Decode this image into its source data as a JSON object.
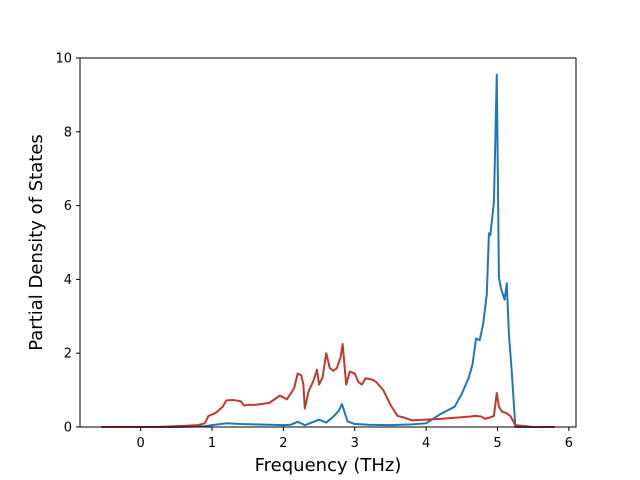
{
  "chart_data": {
    "type": "line",
    "xlabel": "Frequency (THz)",
    "ylabel": "Partial Density of States",
    "xlim": [
      -0.85,
      6.1
    ],
    "ylim": [
      0,
      10
    ],
    "xticks": [
      0,
      1,
      2,
      3,
      4,
      5,
      6
    ],
    "yticks": [
      0,
      2,
      4,
      6,
      8,
      10
    ],
    "grid": false,
    "series": [
      {
        "color": "#1f77b4",
        "x": [
          -0.55,
          0.5,
          0.9,
          1.0,
          1.2,
          1.4,
          1.6,
          2.0,
          2.1,
          2.2,
          2.3,
          2.45,
          2.5,
          2.6,
          2.7,
          2.78,
          2.82,
          2.9,
          3.0,
          3.2,
          3.5,
          3.8,
          4.0,
          4.2,
          4.4,
          4.5,
          4.6,
          4.65,
          4.7,
          4.75,
          4.8,
          4.85,
          4.88,
          4.9,
          4.95,
          4.99,
          5.02,
          5.05,
          5.1,
          5.13,
          5.16,
          5.2,
          5.25,
          5.8
        ],
        "y": [
          0.0,
          0.0,
          0.02,
          0.05,
          0.1,
          0.08,
          0.07,
          0.05,
          0.06,
          0.14,
          0.05,
          0.16,
          0.2,
          0.12,
          0.28,
          0.45,
          0.62,
          0.15,
          0.08,
          0.06,
          0.05,
          0.07,
          0.1,
          0.35,
          0.55,
          0.9,
          1.35,
          1.7,
          2.4,
          2.35,
          2.8,
          3.6,
          5.25,
          5.2,
          6.1,
          9.55,
          4.05,
          3.75,
          3.45,
          3.9,
          2.5,
          1.5,
          0.0,
          0.0
        ]
      },
      {
        "color": "#c0392b",
        "x": [
          -0.55,
          0.2,
          0.6,
          0.8,
          0.9,
          0.95,
          1.05,
          1.15,
          1.2,
          1.3,
          1.4,
          1.45,
          1.5,
          1.6,
          1.8,
          1.95,
          2.05,
          2.15,
          2.2,
          2.25,
          2.28,
          2.3,
          2.35,
          2.42,
          2.47,
          2.5,
          2.55,
          2.6,
          2.65,
          2.7,
          2.75,
          2.8,
          2.83,
          2.88,
          2.93,
          3.0,
          3.05,
          3.1,
          3.15,
          3.2,
          3.25,
          3.3,
          3.4,
          3.5,
          3.6,
          3.7,
          3.8,
          4.0,
          4.2,
          4.4,
          4.6,
          4.7,
          4.78,
          4.82,
          4.88,
          4.95,
          4.99,
          5.02,
          5.06,
          5.12,
          5.18,
          5.25,
          5.5,
          5.8
        ],
        "y": [
          0.0,
          0.0,
          0.03,
          0.05,
          0.1,
          0.3,
          0.38,
          0.55,
          0.72,
          0.73,
          0.7,
          0.58,
          0.6,
          0.6,
          0.65,
          0.85,
          0.75,
          1.05,
          1.45,
          1.4,
          1.15,
          0.5,
          0.95,
          1.25,
          1.55,
          1.15,
          1.35,
          2.0,
          1.6,
          1.52,
          1.6,
          1.88,
          2.25,
          1.15,
          1.5,
          1.45,
          1.22,
          1.15,
          1.32,
          1.3,
          1.28,
          1.22,
          1.0,
          0.6,
          0.3,
          0.25,
          0.18,
          0.2,
          0.22,
          0.25,
          0.28,
          0.3,
          0.28,
          0.22,
          0.25,
          0.3,
          0.92,
          0.55,
          0.42,
          0.38,
          0.3,
          0.05,
          0.0,
          0.0
        ]
      }
    ]
  }
}
